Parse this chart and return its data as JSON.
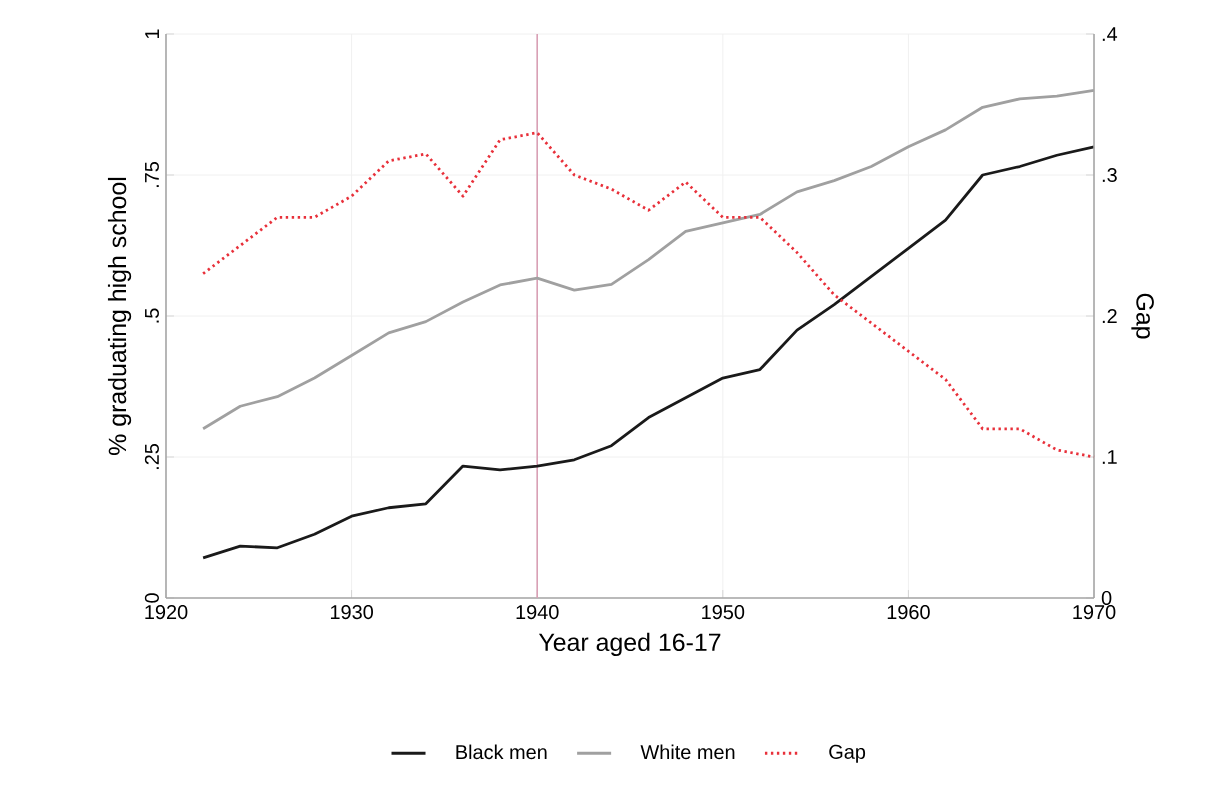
{
  "chart_data": {
    "type": "line",
    "xlabel": "Year aged 16-17",
    "ylabel": "% graduating high school",
    "y2label": "Gap",
    "x": [
      1922,
      1924,
      1926,
      1928,
      1930,
      1932,
      1934,
      1936,
      1938,
      1940,
      1942,
      1944,
      1946,
      1948,
      1950,
      1952,
      1954,
      1956,
      1958,
      1960,
      1962,
      1964,
      1966,
      1968,
      1970
    ],
    "series": [
      {
        "name": "Black men",
        "color": "#1a1a1a",
        "values": [
          0.071,
          0.092,
          0.089,
          0.113,
          0.145,
          0.16,
          0.167,
          0.234,
          0.227,
          0.234,
          0.245,
          0.27,
          0.32,
          0.355,
          0.39,
          0.405,
          0.475,
          0.52,
          0.57,
          0.62,
          0.67,
          0.75,
          0.765,
          0.785,
          0.8
        ]
      },
      {
        "name": "White men",
        "color": "#a0a0a0",
        "values": [
          0.3,
          0.34,
          0.357,
          0.39,
          0.43,
          0.47,
          0.49,
          0.525,
          0.555,
          0.567,
          0.546,
          0.556,
          0.6,
          0.65,
          0.665,
          0.68,
          0.72,
          0.74,
          0.765,
          0.8,
          0.83,
          0.87,
          0.885,
          0.89,
          0.9
        ]
      },
      {
        "name": "Gap",
        "color": "#e8303a",
        "axis": "y2",
        "line_style": "dotted",
        "values": [
          0.23,
          0.25,
          0.27,
          0.27,
          0.285,
          0.31,
          0.315,
          0.285,
          0.325,
          0.33,
          0.3,
          0.29,
          0.275,
          0.295,
          0.27,
          0.27,
          0.245,
          0.215,
          0.195,
          0.175,
          0.155,
          0.12,
          0.12,
          0.105,
          0.1
        ]
      }
    ],
    "xlim": [
      1920,
      1970
    ],
    "xticks": [
      1920,
      1930,
      1940,
      1950,
      1960,
      1970
    ],
    "ylim": [
      0,
      1
    ],
    "yticks": [
      0,
      {
        "value": 0.25,
        "label": ".25"
      },
      {
        "value": 0.5,
        "label": ".5"
      },
      {
        "value": 0.75,
        "label": ".75"
      },
      1
    ],
    "y2lim": [
      0,
      0.4
    ],
    "y2ticks": [
      0,
      {
        "value": 0.1,
        "label": ".1"
      },
      {
        "value": 0.2,
        "label": ".2"
      },
      {
        "value": 0.3,
        "label": ".3"
      },
      {
        "value": 0.4,
        "label": ".4"
      }
    ],
    "ref_lines": [
      {
        "axis": "x",
        "value": 1940,
        "color": "#d9a0b5"
      }
    ],
    "grid": true,
    "legend": "bottom"
  }
}
